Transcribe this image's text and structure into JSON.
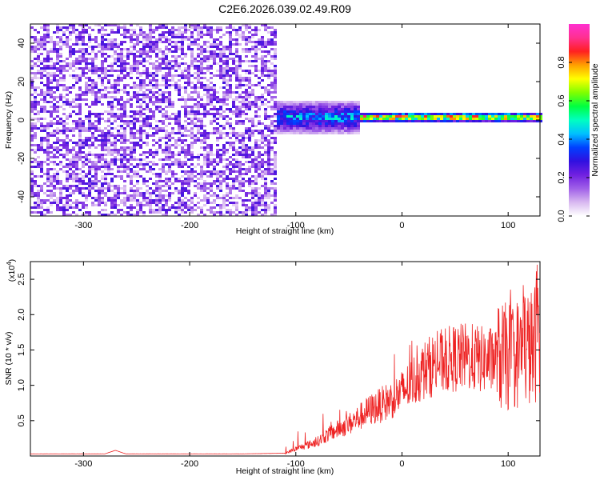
{
  "figure": {
    "title": "C2E6.2026.039.02.49.R09"
  },
  "chart_data": [
    {
      "type": "heatmap",
      "xlabel": "Height of straight line (km)",
      "ylabel": "Frequency (Hz)",
      "xlim": [
        -350,
        130
      ],
      "ylim": [
        -50,
        50
      ],
      "xticks": [
        -300,
        -200,
        -100,
        0,
        100
      ],
      "yticks": [
        -40,
        -20,
        0,
        20,
        40
      ],
      "colorbar": {
        "label": "Normalized spectral amplitude",
        "range": [
          0,
          1
        ],
        "ticks": [
          "0.0",
          "0.2",
          "0.4",
          "0.6",
          "0.8"
        ],
        "colors": [
          "#ffffff",
          "#d8b8f0",
          "#a060e8",
          "#7020e0",
          "#3010e0",
          "#0040ff",
          "#00c0ff",
          "#00ffc0",
          "#00ff40",
          "#80ff00",
          "#ffff00",
          "#ffa000",
          "#ff2020",
          "#ff3090",
          "#ff30d0"
        ]
      },
      "regions": [
        {
          "name": "noise",
          "x_from": -350,
          "x_to": -120,
          "freq_span": [
            -50,
            50
          ],
          "typical_amplitude": 0.15
        },
        {
          "name": "signal-onset",
          "x_from": -120,
          "x_to": -40,
          "freq_center": 2,
          "freq_spread": 10,
          "typical_amplitude": 0.45
        },
        {
          "name": "signal-line",
          "x_from": -40,
          "x_to": 130,
          "freq_center": 2,
          "freq_spread": 3,
          "typical_amplitude": 0.9
        }
      ]
    },
    {
      "type": "line",
      "xlabel": "Height of straight line (km)",
      "ylabel": "SNR (10 * v/v)",
      "y_multiplier": "(x10",
      "y_multiplier_exp": "4",
      "y_multiplier_close": ")",
      "xlim": [
        -350,
        130
      ],
      "ylim": [
        0,
        2.75
      ],
      "xticks": [
        -300,
        -200,
        -100,
        0,
        100
      ],
      "yticks": [
        "0.5",
        "1.0",
        "1.5",
        "2.0",
        "2.5"
      ],
      "line_color": "#ee2222",
      "series": [
        {
          "x": [
            -350,
            -280,
            -270,
            -260,
            -200,
            -150,
            -110,
            -100,
            -90,
            -80,
            -70,
            -60,
            -50,
            -40,
            -30,
            -20,
            -10,
            0,
            10,
            20,
            30,
            40,
            50,
            60,
            70,
            80,
            90,
            100,
            110,
            115,
            120,
            125,
            128
          ],
          "y": [
            0.03,
            0.03,
            0.08,
            0.03,
            0.03,
            0.03,
            0.04,
            0.1,
            0.15,
            0.2,
            0.3,
            0.38,
            0.45,
            0.55,
            0.65,
            0.72,
            0.8,
            0.9,
            1.05,
            1.2,
            1.3,
            1.35,
            1.38,
            1.4,
            1.38,
            1.35,
            1.38,
            1.4,
            1.45,
            1.6,
            1.5,
            1.55,
            2.0
          ]
        }
      ]
    }
  ]
}
